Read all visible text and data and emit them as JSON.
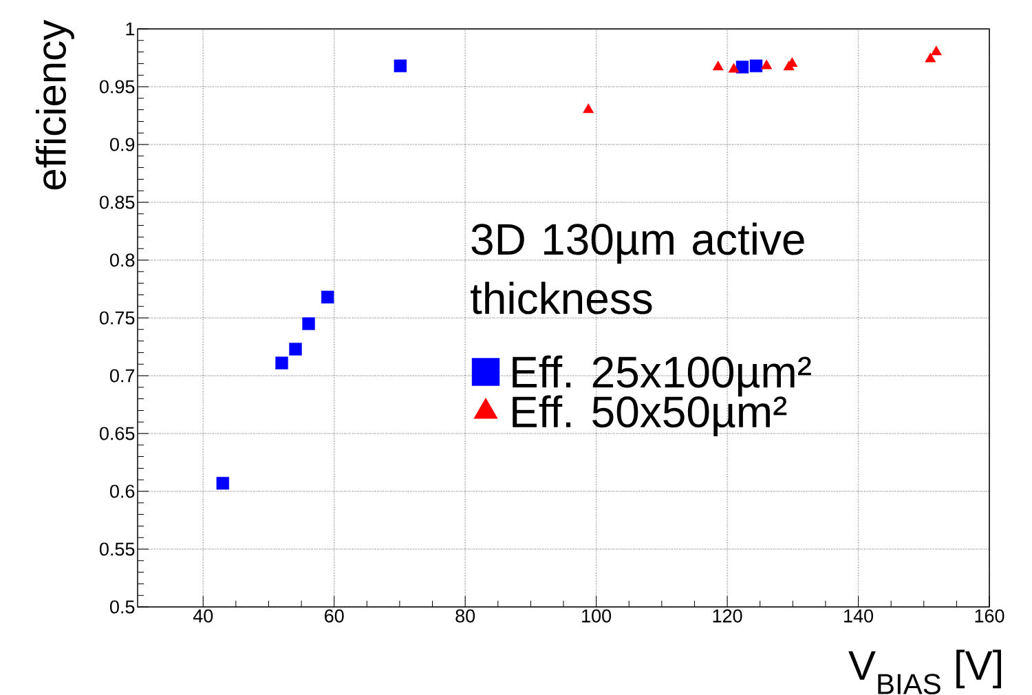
{
  "chart_data": {
    "type": "scatter",
    "xlabel": "V$_{BIAS}$ [V]",
    "ylabel": "efficiency",
    "legend_title": "3D 130µm active thickness",
    "xlim": [
      30,
      160
    ],
    "ylim": [
      0.5,
      1
    ],
    "xticks": [
      40,
      60,
      80,
      100,
      120,
      140,
      160
    ],
    "yticks": [
      0.5,
      0.55,
      0.6,
      0.65,
      0.7,
      0.75,
      0.8,
      0.85,
      0.9,
      0.95,
      1
    ],
    "grid": true,
    "legend": "right",
    "series": [
      {
        "name": "Eff. 25x100µm²",
        "color": "#0000ff",
        "marker": "square",
        "x": [
          43.0,
          52.0,
          54.1,
          56.1,
          59.0,
          70.1,
          122.3,
          124.4
        ],
        "values": [
          0.607,
          0.711,
          0.723,
          0.745,
          0.768,
          0.968,
          0.967,
          0.968
        ]
      },
      {
        "name": "Eff. 50x50µm²",
        "color": "#ff0000",
        "marker": "triangle",
        "x": [
          98.8,
          118.6,
          121.0,
          126.0,
          129.4,
          129.9,
          151.0,
          151.9
        ],
        "values": [
          0.93,
          0.967,
          0.965,
          0.968,
          0.967,
          0.97,
          0.974,
          0.98
        ]
      }
    ]
  }
}
